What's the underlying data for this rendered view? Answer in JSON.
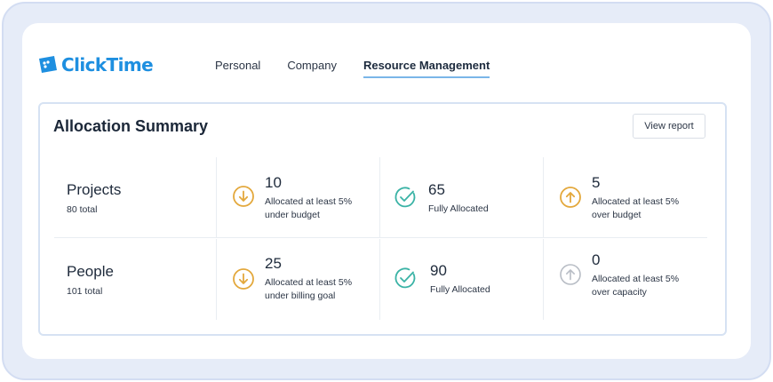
{
  "brand": {
    "name": "ClickTime",
    "color": "#1e8fe0",
    "icon": "ticket-logo-icon"
  },
  "nav": {
    "items": [
      {
        "label": "Personal",
        "active": false
      },
      {
        "label": "Company",
        "active": false
      },
      {
        "label": "Resource Management",
        "active": true
      }
    ]
  },
  "summary": {
    "title": "Allocation Summary",
    "view_report_label": "View report",
    "rows": [
      {
        "title": "Projects",
        "total": "80 total",
        "cells": [
          {
            "value": "10",
            "desc": "Allocated at least 5% under budget",
            "icon": "arrow-down-circle-icon",
            "color": "#e3a83c"
          },
          {
            "value": "65",
            "desc": "Fully Allocated",
            "icon": "check-circle-icon",
            "color": "#3bb3a6"
          },
          {
            "value": "5",
            "desc": "Allocated at least 5% over budget",
            "icon": "arrow-up-circle-icon",
            "color": "#e3a83c"
          }
        ]
      },
      {
        "title": "People",
        "total": "101 total",
        "cells": [
          {
            "value": "25",
            "desc": "Allocated at least 5% under billing goal",
            "icon": "arrow-down-circle-icon",
            "color": "#e3a83c"
          },
          {
            "value": "90",
            "desc": "Fully Allocated",
            "icon": "check-circle-icon",
            "color": "#3bb3a6"
          },
          {
            "value": "0",
            "desc": "Allocated at least 5% over capacity",
            "icon": "arrow-up-circle-icon",
            "color": "#b8bdc5"
          }
        ]
      }
    ]
  }
}
